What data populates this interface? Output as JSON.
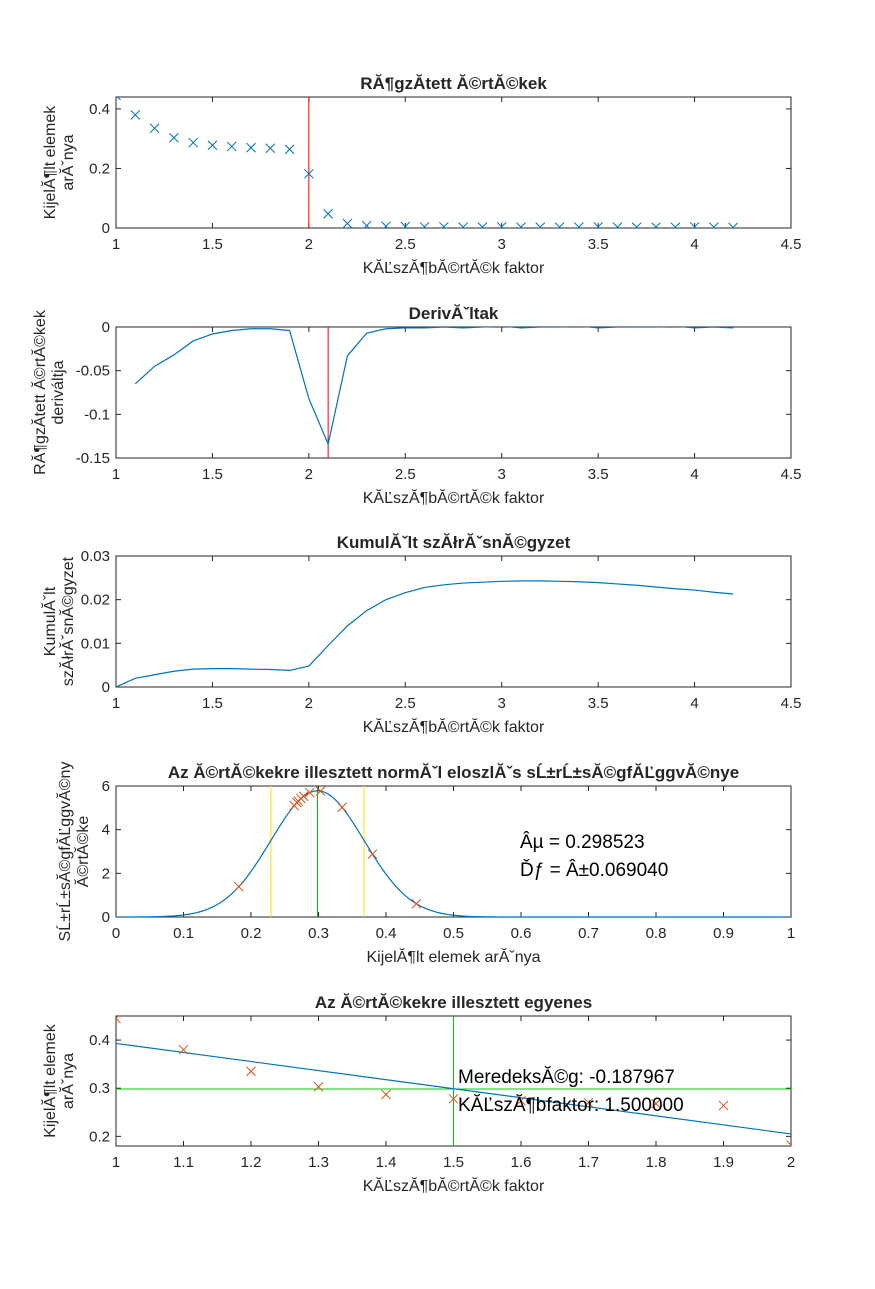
{
  "colors": {
    "series": "#0072BD",
    "marker_x": "#D95319",
    "red_line": "#FF0000",
    "green_line": "#00CC00",
    "yellow_line": "#FFDD00"
  },
  "chart_data": [
    {
      "id": "p1",
      "type": "scatter",
      "title": "RĂ¶gzĂ­tett Ă©rtĂ©kek",
      "xlabel": "KĂĽszĂ¶bĂ©rtĂ©k faktor",
      "ylabel": [
        "KijelĂ¶lt elemek",
        "arĂˇnya"
      ],
      "xlim": [
        1,
        4.5
      ],
      "ylim": [
        0,
        0.44
      ],
      "xticks": [
        1,
        1.5,
        2,
        2.5,
        3,
        3.5,
        4,
        4.5
      ],
      "yticks": [
        0,
        0.2,
        0.4
      ],
      "grid": false,
      "x": [
        1,
        1.1,
        1.2,
        1.3,
        1.4,
        1.5,
        1.6,
        1.7,
        1.8,
        1.9,
        2,
        2.1,
        2.2,
        2.3,
        2.4,
        2.5,
        2.6,
        2.7,
        2.8,
        2.9,
        3,
        3.1,
        3.2,
        3.3,
        3.4,
        3.5,
        3.6,
        3.7,
        3.8,
        3.9,
        4,
        4.1,
        4.2
      ],
      "y": [
        0.445,
        0.38,
        0.335,
        0.303,
        0.287,
        0.278,
        0.274,
        0.27,
        0.268,
        0.264,
        0.182,
        0.048,
        0.015,
        0.008,
        0.006,
        0.005,
        0.004,
        0.004,
        0.003,
        0.003,
        0.004,
        0.003,
        0.003,
        0.003,
        0.003,
        0.004,
        0.003,
        0.003,
        0.003,
        0.003,
        0.004,
        0.003,
        0.002
      ],
      "vline": 2
    },
    {
      "id": "p2",
      "type": "line",
      "title": "DerivĂˇltak",
      "xlabel": "KĂĽszĂ¶bĂ©rtĂ©k faktor",
      "ylabel": [
        "RĂ¶gzĂ­tett Ă©rtĂ©kek",
        "deriváltja"
      ],
      "xlim": [
        1,
        4.5
      ],
      "ylim": [
        -0.15,
        0
      ],
      "xticks": [
        1,
        1.5,
        2,
        2.5,
        3,
        3.5,
        4,
        4.5
      ],
      "yticks": [
        -0.15,
        -0.1,
        -0.05,
        0
      ],
      "grid": false,
      "x": [
        1.1,
        1.2,
        1.3,
        1.4,
        1.5,
        1.6,
        1.7,
        1.8,
        1.9,
        2,
        2.1,
        2.2,
        2.3,
        2.4,
        2.5,
        2.6,
        2.7,
        2.8,
        2.9,
        3,
        3.1,
        3.2,
        3.3,
        3.4,
        3.5,
        3.6,
        3.7,
        3.8,
        3.9,
        4,
        4.1,
        4.2
      ],
      "y": [
        -0.065,
        -0.045,
        -0.032,
        -0.016,
        -0.008,
        -0.004,
        -0.002,
        -0.002,
        -0.004,
        -0.082,
        -0.134,
        -0.033,
        -0.007,
        -0.002,
        -0.001,
        -0.001,
        0,
        -0.001,
        0,
        0.001,
        -0.001,
        0,
        0,
        0.001,
        -0.001,
        0,
        0,
        0,
        0.001,
        -0.001,
        0,
        -0.001
      ],
      "vline": 2.1
    },
    {
      "id": "p3",
      "type": "line",
      "title": "KumulĂˇlt szĂłrĂˇsnĂ©gyzet",
      "xlabel": "KĂĽszĂ¶bĂ©rtĂ©k faktor",
      "ylabel": [
        "KumulĂˇlt",
        "szĂłrĂˇsnĂ©gyzet"
      ],
      "xlim": [
        1,
        4.5
      ],
      "ylim": [
        0,
        0.03
      ],
      "xticks": [
        1,
        1.5,
        2,
        2.5,
        3,
        3.5,
        4,
        4.5
      ],
      "yticks": [
        0,
        0.01,
        0.02,
        0.03
      ],
      "grid": false,
      "x": [
        1,
        1.1,
        1.2,
        1.3,
        1.4,
        1.5,
        1.6,
        1.7,
        1.8,
        1.9,
        2,
        2.1,
        2.2,
        2.3,
        2.4,
        2.5,
        2.6,
        2.7,
        2.8,
        2.9,
        3,
        3.1,
        3.2,
        3.3,
        3.4,
        3.5,
        3.6,
        3.7,
        3.8,
        3.9,
        4,
        4.1,
        4.2
      ],
      "y": [
        0,
        0.002,
        0.0028,
        0.0036,
        0.0041,
        0.0042,
        0.0042,
        0.0041,
        0.004,
        0.0038,
        0.0048,
        0.0095,
        0.014,
        0.0175,
        0.02,
        0.0216,
        0.0228,
        0.0234,
        0.0238,
        0.024,
        0.0242,
        0.0243,
        0.0243,
        0.0242,
        0.0241,
        0.0239,
        0.0236,
        0.0233,
        0.0229,
        0.0225,
        0.0222,
        0.0217,
        0.0213
      ]
    },
    {
      "id": "p4",
      "type": "line",
      "title": "Az Ă©rtĂ©kekre illesztett normĂˇl eloszlĂˇs sĹ±rĹ±sĂ©gfĂĽggvĂ©nye",
      "xlabel": "KijelĂ¶lt elemek arĂˇnya",
      "ylabel": [
        "SĹ±rĹ±sĂ©gfĂĽggvĂ©ny",
        "Ă©rtĂ©ke"
      ],
      "xlim": [
        0,
        1
      ],
      "ylim": [
        0,
        6
      ],
      "xticks": [
        0,
        0.1,
        0.2,
        0.3,
        0.4,
        0.5,
        0.6,
        0.7,
        0.8,
        0.9,
        1
      ],
      "yticks": [
        0,
        2,
        4,
        6
      ],
      "grid": false,
      "mu": 0.298523,
      "sigma": 0.06904,
      "vline_center": 0.2985,
      "vlines_sigma": [
        0.2295,
        0.3675
      ],
      "markers_x": [
        0.182,
        0.264,
        0.268,
        0.27,
        0.274,
        0.278,
        0.287,
        0.303,
        0.335,
        0.38,
        0.445
      ],
      "annotation": [
        "Âµ = 0.298523",
        "Ďƒ = Â±0.069040"
      ]
    },
    {
      "id": "p5",
      "type": "scatter",
      "title": "Az Ă©rtĂ©kekre illesztett egyenes",
      "xlabel": "KĂĽszĂ¶bĂ©rtĂ©k faktor",
      "ylabel": [
        "KijelĂ¶lt elemek",
        "arĂˇnya"
      ],
      "xlim": [
        1,
        2
      ],
      "ylim": [
        0.18,
        0.45
      ],
      "xticks": [
        1,
        1.1,
        1.2,
        1.3,
        1.4,
        1.5,
        1.6,
        1.7,
        1.8,
        1.9,
        2
      ],
      "yticks": [
        0.2,
        0.3,
        0.4
      ],
      "grid": false,
      "x": [
        1,
        1.1,
        1.2,
        1.3,
        1.4,
        1.5,
        1.6,
        1.7,
        1.8,
        1.9,
        2
      ],
      "y": [
        0.445,
        0.38,
        0.335,
        0.303,
        0.287,
        0.278,
        0.274,
        0.27,
        0.268,
        0.264,
        0.182
      ],
      "fit_line": {
        "x": [
          1,
          2
        ],
        "y": [
          0.393,
          0.205
        ]
      },
      "hline": 0.2985,
      "vline": 1.5,
      "annotation": [
        "MeredeksĂ©g: -0.187967",
        "KĂĽszĂ¶bfaktor: 1.500000"
      ]
    }
  ]
}
